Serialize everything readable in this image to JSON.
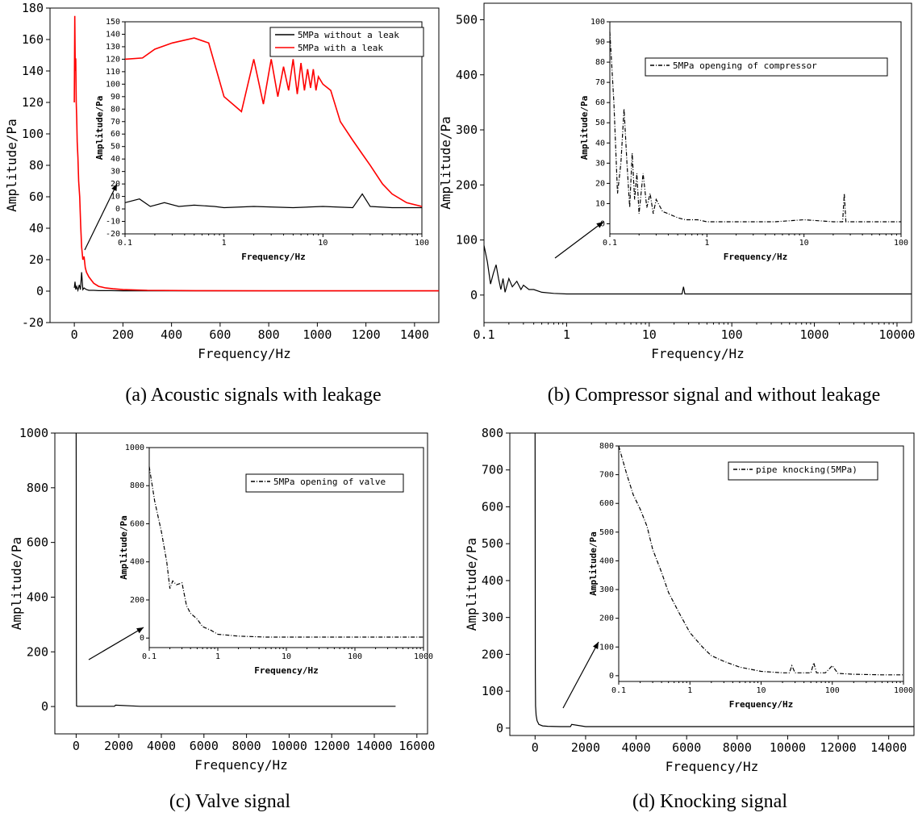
{
  "chart_data": [
    {
      "id": "a",
      "type": "line",
      "caption": "(a) Acoustic signals with leakage",
      "xlabel": "Frequency/Hz",
      "ylabel": "Amplitude/Pa",
      "xlim": [
        -100,
        1500
      ],
      "ylim": [
        -20,
        180
      ],
      "xticks": [
        0,
        200,
        400,
        600,
        800,
        1000,
        1200,
        1400
      ],
      "yticks": [
        -20,
        0,
        20,
        40,
        60,
        80,
        100,
        120,
        140,
        160,
        180
      ],
      "series": [
        {
          "name": "5MPa without a leak",
          "color": "#000000",
          "x": [
            0,
            3,
            6,
            10,
            15,
            20,
            25,
            30,
            35,
            40,
            50,
            60,
            80,
            100,
            150,
            200,
            300,
            500,
            800,
            1000,
            1200,
            1400,
            1500
          ],
          "y": [
            2,
            6,
            1,
            3,
            0.5,
            4,
            1,
            12,
            1,
            2,
            1,
            0.5,
            0.5,
            0.3,
            0.3,
            0.2,
            0.2,
            0.2,
            0.2,
            0.2,
            0.2,
            0.2,
            0.2
          ]
        },
        {
          "name": "5MPa with a leak",
          "color": "#ff0000",
          "x": [
            0,
            2,
            4,
            6,
            8,
            10,
            12,
            15,
            18,
            22,
            26,
            30,
            35,
            40,
            45,
            50,
            60,
            70,
            80,
            100,
            130,
            160,
            200,
            300,
            500,
            800,
            1000,
            1200,
            1400,
            1500
          ],
          "y": [
            120,
            175,
            140,
            148,
            120,
            110,
            95,
            85,
            70,
            60,
            42,
            28,
            20,
            22,
            15,
            12,
            9,
            7,
            5,
            3,
            2,
            1.5,
            1,
            0.5,
            0.3,
            0.2,
            0.2,
            0.2,
            0.2,
            0.2
          ]
        }
      ],
      "inset": {
        "xscale": "log",
        "xlim": [
          0.1,
          100
        ],
        "ylim": [
          -20,
          150
        ],
        "xticks": [
          0.1,
          1,
          10,
          100
        ],
        "xticklabels": [
          "0.1",
          "1",
          "10",
          "100"
        ],
        "yticks": [
          -20,
          -10,
          0,
          10,
          20,
          30,
          40,
          50,
          60,
          70,
          80,
          90,
          100,
          110,
          120,
          130,
          140,
          150
        ],
        "xlabel": "Frequency/Hz",
        "ylabel": "Amplitude/Pa",
        "series": [
          {
            "name": "5MPa without a leak",
            "color": "#000000",
            "x": [
              0.1,
              0.14,
              0.18,
              0.25,
              0.35,
              0.5,
              0.8,
              1,
              2,
              5,
              10,
              20,
              25,
              30,
              50,
              100
            ],
            "y": [
              5,
              8,
              2,
              5,
              2,
              3,
              2,
              1,
              2,
              1,
              2,
              1,
              12,
              2,
              1,
              1
            ]
          },
          {
            "name": "5MPa with a leak",
            "color": "#ff0000",
            "x": [
              0.1,
              0.15,
              0.2,
              0.3,
              0.5,
              0.7,
              1,
              1.5,
              2,
              2.5,
              3,
              3.5,
              4,
              4.5,
              5,
              5.5,
              6,
              6.5,
              7,
              7.5,
              8,
              8.5,
              9,
              10,
              12,
              15,
              20,
              25,
              30,
              40,
              50,
              70,
              100
            ],
            "y": [
              120,
              121,
              128,
              133,
              137,
              133,
              90,
              78,
              120,
              84,
              120,
              90,
              114,
              95,
              120,
              92,
              117,
              95,
              112,
              97,
              112,
              95,
              106,
              100,
              95,
              70,
              55,
              44,
              35,
              20,
              12,
              5,
              2
            ]
          }
        ]
      }
    },
    {
      "id": "b",
      "type": "line",
      "caption": "(b) Compressor signal and without leakage",
      "xlabel": "Frequency/Hz",
      "ylabel": "Amplitude/Pa",
      "xscale": "log",
      "xlim": [
        0.1,
        15000
      ],
      "ylim": [
        -50,
        530
      ],
      "xticks": [
        0.1,
        1,
        10,
        100,
        1000,
        10000
      ],
      "xticklabels": [
        "0.1",
        "1",
        "10",
        "100",
        "1000",
        "10000"
      ],
      "yticks": [
        0,
        100,
        200,
        300,
        400,
        500
      ],
      "series": [
        {
          "name": "5MPa openging of compressor",
          "color": "#000000",
          "x": [
            0.1,
            0.11,
            0.12,
            0.13,
            0.14,
            0.15,
            0.16,
            0.17,
            0.18,
            0.2,
            0.22,
            0.25,
            0.28,
            0.3,
            0.35,
            0.4,
            0.5,
            0.7,
            1,
            2,
            5,
            10,
            20,
            25,
            26,
            27,
            30,
            100,
            1000,
            15000
          ],
          "y": [
            90,
            60,
            20,
            40,
            55,
            30,
            10,
            30,
            5,
            30,
            15,
            25,
            10,
            18,
            10,
            10,
            5,
            3,
            2,
            2,
            2,
            2,
            2,
            2,
            15,
            2,
            2,
            2,
            2,
            2
          ]
        }
      ],
      "inset": {
        "xscale": "log",
        "xlim": [
          0.1,
          100
        ],
        "ylim": [
          -5,
          100
        ],
        "xticks": [
          0.1,
          1,
          10,
          100
        ],
        "xticklabels": [
          "0.1",
          "1",
          "10",
          "100"
        ],
        "yticks": [
          0,
          10,
          20,
          30,
          40,
          50,
          60,
          70,
          80,
          90,
          100
        ],
        "xlabel": "Frequency/Hz",
        "ylabel": "Amplitude/Pa",
        "series": [
          {
            "name": "5MPa openging of compressor",
            "color": "#000000",
            "x": [
              0.1,
              0.11,
              0.12,
              0.13,
              0.14,
              0.15,
              0.16,
              0.17,
              0.18,
              0.19,
              0.2,
              0.22,
              0.24,
              0.26,
              0.28,
              0.3,
              0.35,
              0.4,
              0.5,
              0.6,
              0.8,
              1,
              2,
              5,
              10,
              20,
              25,
              26,
              27,
              50,
              100
            ],
            "y": [
              95,
              60,
              15,
              30,
              57,
              30,
              8,
              35,
              12,
              25,
              5,
              25,
              8,
              15,
              5,
              12,
              6,
              5,
              3,
              2,
              2,
              1,
              1,
              1,
              2,
              1,
              1,
              15,
              1,
              1,
              1
            ]
          }
        ]
      }
    },
    {
      "id": "c",
      "type": "line",
      "caption": "(c) Valve signal",
      "xlabel": "Frequency/Hz",
      "ylabel": "Amplitude/Pa",
      "xlim": [
        -1000,
        16500
      ],
      "ylim": [
        -100,
        1000
      ],
      "xticks": [
        0,
        2000,
        4000,
        6000,
        8000,
        10000,
        12000,
        14000,
        16000
      ],
      "yticks": [
        0,
        200,
        400,
        600,
        800,
        1000
      ],
      "series": [
        {
          "name": "5MPa opening of valve",
          "color": "#000000",
          "x": [
            0,
            3,
            5,
            8,
            12,
            20,
            50,
            200,
            1000,
            1800,
            1850,
            3000,
            8000,
            15000
          ],
          "y": [
            1000,
            800,
            600,
            300,
            100,
            2,
            1,
            1,
            1,
            1,
            5,
            1,
            1,
            1
          ]
        }
      ],
      "inset": {
        "xscale": "log",
        "xlim": [
          0.1,
          1000
        ],
        "ylim": [
          -50,
          1000
        ],
        "xticks": [
          0.1,
          1,
          10,
          100,
          1000
        ],
        "xticklabels": [
          "0.1",
          "1",
          "10",
          "100",
          "1000"
        ],
        "yticks": [
          0,
          200,
          400,
          600,
          800,
          1000
        ],
        "xlabel": "Frequency/Hz",
        "ylabel": "Amplitude/Pa",
        "series": [
          {
            "name": "5MPa opening of valve",
            "color": "#000000",
            "x": [
              0.1,
              0.12,
              0.15,
              0.18,
              0.2,
              0.22,
              0.25,
              0.3,
              0.35,
              0.4,
              0.5,
              0.6,
              0.8,
              1,
              2,
              5,
              10,
              50,
              100,
              1000
            ],
            "y": [
              900,
              720,
              560,
              400,
              260,
              300,
              280,
              290,
              170,
              130,
              100,
              60,
              40,
              20,
              10,
              5,
              5,
              5,
              5,
              5
            ]
          }
        ]
      }
    },
    {
      "id": "d",
      "type": "line",
      "caption": "(d) Knocking signal",
      "xlabel": "Frequency/Hz",
      "ylabel": "Amplitude/Pa",
      "xlim": [
        -1000,
        15000
      ],
      "ylim": [
        -20,
        800
      ],
      "xticks": [
        0,
        2000,
        4000,
        6000,
        8000,
        10000,
        12000,
        14000
      ],
      "yticks": [
        0,
        100,
        200,
        300,
        400,
        500,
        600,
        700,
        800
      ],
      "series": [
        {
          "name": "pipe knocking(5MPa)",
          "color": "#000000",
          "x": [
            0,
            5,
            10,
            20,
            40,
            80,
            150,
            300,
            500,
            1000,
            1400,
            1450,
            2000,
            5000,
            10000,
            15000
          ],
          "y": [
            800,
            400,
            150,
            60,
            35,
            20,
            10,
            6,
            5,
            4,
            4,
            10,
            4,
            4,
            4,
            4
          ]
        }
      ],
      "inset": {
        "xscale": "log",
        "xlim": [
          0.1,
          1000
        ],
        "ylim": [
          -20,
          800
        ],
        "xticks": [
          0.1,
          1,
          10,
          100,
          1000
        ],
        "xticklabels": [
          "0.1",
          "1",
          "10",
          "100",
          "1000"
        ],
        "yticks": [
          0,
          100,
          200,
          300,
          400,
          500,
          600,
          700,
          800
        ],
        "xlabel": "Frequency/Hz",
        "ylabel": "Amplitude/Pa",
        "series": [
          {
            "name": "pipe knocking(5MPa)",
            "color": "#000000",
            "x": [
              0.1,
              0.13,
              0.16,
              0.2,
              0.25,
              0.3,
              0.4,
              0.5,
              0.7,
              1,
              1.5,
              2,
              3,
              5,
              10,
              20,
              25,
              27,
              30,
              50,
              55,
              60,
              80,
              100,
              120,
              200,
              500,
              1000
            ],
            "y": [
              800,
              700,
              630,
              580,
              520,
              440,
              360,
              290,
              220,
              150,
              100,
              70,
              50,
              30,
              15,
              10,
              10,
              35,
              10,
              10,
              45,
              10,
              10,
              35,
              8,
              5,
              3,
              3
            ]
          }
        ]
      }
    }
  ]
}
